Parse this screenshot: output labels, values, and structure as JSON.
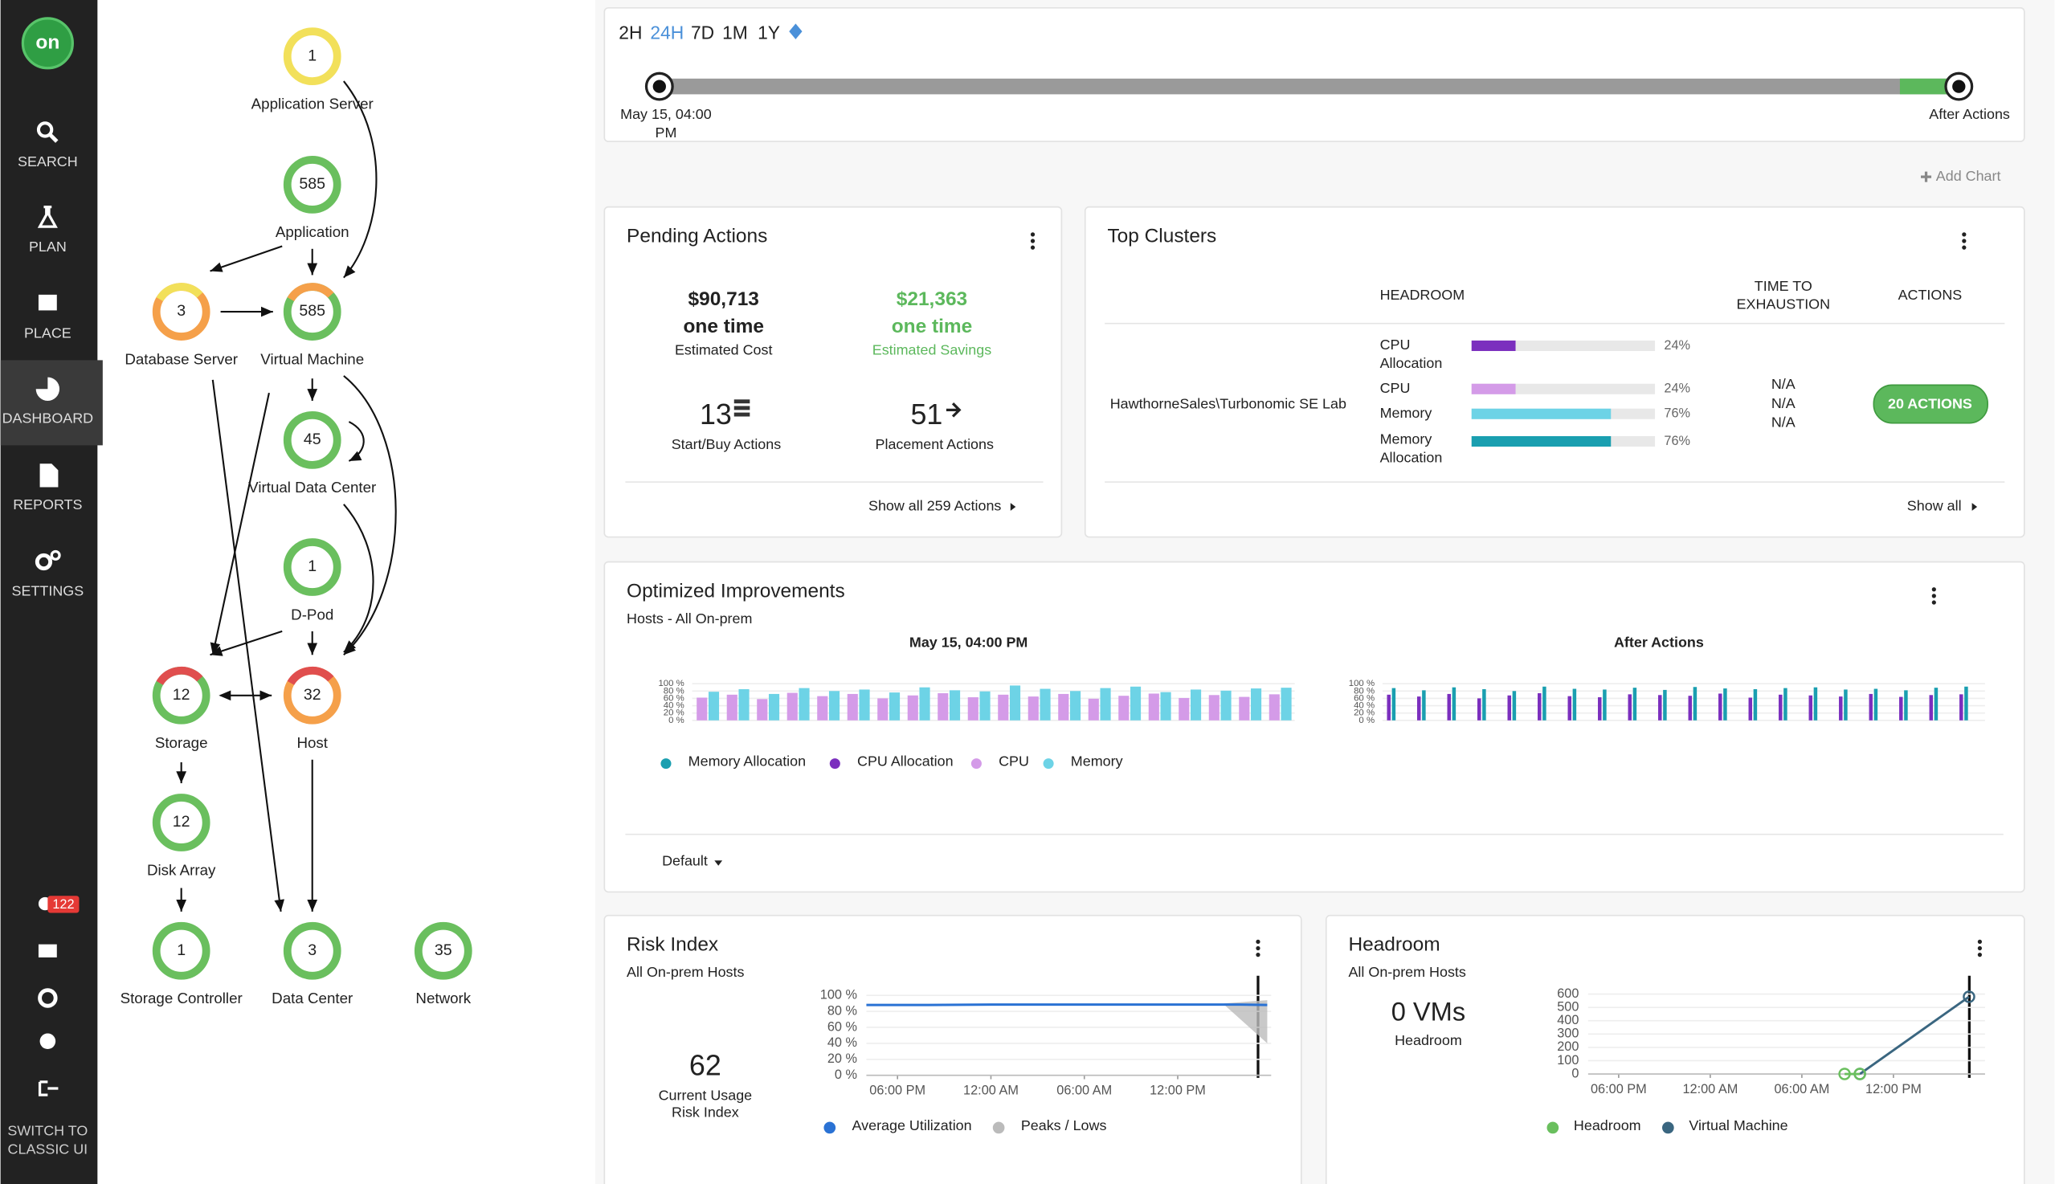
{
  "sidebar": {
    "logo": "on",
    "nav": [
      "SEARCH",
      "PLAN",
      "PLACE",
      "DASHBOARD",
      "REPORTS",
      "SETTINGS"
    ],
    "notifications": "122",
    "switch": [
      "SWITCH TO",
      "CLASSIC UI"
    ]
  },
  "supply_chain": {
    "nodes": [
      {
        "label": "Application Server",
        "count": 1,
        "color": "#f2e05a"
      },
      {
        "label": "Application",
        "count": 585,
        "color": "#6abf5e"
      },
      {
        "label": "Database Server",
        "count": 3,
        "color": "#f5a04a",
        "accent": "#f2e05a"
      },
      {
        "label": "Virtual Machine",
        "count": 585,
        "color": "#6abf5e",
        "accent": "#f5a04a"
      },
      {
        "label": "Virtual Data Center",
        "count": 45,
        "color": "#6abf5e"
      },
      {
        "label": "D-Pod",
        "count": 1,
        "color": "#6abf5e"
      },
      {
        "label": "Storage",
        "count": 12,
        "color": "#6abf5e",
        "accent": "#e04e4e"
      },
      {
        "label": "Host",
        "count": 32,
        "color": "#f5a04a",
        "accent": "#e04e4e"
      },
      {
        "label": "Disk Array",
        "count": 12,
        "color": "#6abf5e"
      },
      {
        "label": "Storage Controller",
        "count": 1,
        "color": "#6abf5e"
      },
      {
        "label": "Data Center",
        "count": 3,
        "color": "#6abf5e"
      },
      {
        "label": "Network",
        "count": 35,
        "color": "#6abf5e"
      }
    ]
  },
  "timeline": {
    "ranges": [
      "2H",
      "24H",
      "7D",
      "1M",
      "1Y"
    ],
    "start_label": [
      "May 15, 04:00",
      "PM"
    ],
    "end_label": "After Actions"
  },
  "add_chart": "Add Chart",
  "pending_actions": {
    "title": "Pending Actions",
    "cost": {
      "amount": "$90,713",
      "period": "one time",
      "label": "Estimated Cost"
    },
    "savings": {
      "amount": "$21,363",
      "period": "one time",
      "label": "Estimated Savings"
    },
    "start_buy": {
      "count": 13,
      "label": "Start/Buy Actions"
    },
    "placement": {
      "count": 51,
      "label": "Placement Actions"
    },
    "show_all": "Show all 259 Actions"
  },
  "top_clusters": {
    "title": "Top Clusters",
    "headroom_header": "HEADROOM",
    "exhaustion_header": [
      "TIME TO",
      "EXHAUSTION"
    ],
    "actions_header": "ACTIONS",
    "cluster": "HawthorneSales\\Turbonomic SE Lab",
    "metrics": [
      {
        "name": [
          "CPU",
          "Allocation"
        ],
        "value": 24,
        "value_label": "24%",
        "color": "#7b2fbe"
      },
      {
        "name": [
          "CPU"
        ],
        "value": 24,
        "value_label": "24%",
        "color": "#d49be8"
      },
      {
        "name": [
          "Memory"
        ],
        "value": 76,
        "value_label": "76%",
        "color": "#6dd3e6"
      },
      {
        "name": [
          "Memory",
          "Allocation"
        ],
        "value": 76,
        "value_label": "76%",
        "color": "#1a9fb0"
      }
    ],
    "exhaustion": [
      "N/A",
      "N/A",
      "N/A"
    ],
    "action_button": "20 ACTIONS",
    "show_all": "Show all"
  },
  "optimized": {
    "title": "Optimized Improvements",
    "subtitle": "Hosts - All On-prem",
    "before_title": "May 15, 04:00 PM",
    "after_title": "After Actions",
    "ylim": [
      0,
      100
    ],
    "yticks": [
      {
        "value": 100,
        "label": "100 %"
      },
      {
        "value": 80,
        "label": "80 %"
      },
      {
        "value": 60,
        "label": "60 %"
      },
      {
        "value": 40,
        "label": "40 %"
      },
      {
        "value": 20,
        "label": "20 %"
      },
      {
        "value": 0,
        "label": "0 %"
      }
    ],
    "series": [
      {
        "name": "Memory Allocation",
        "color": "#1a9fb0",
        "after": [
          88,
          82,
          90,
          85,
          80,
          92,
          86,
          84,
          89,
          83,
          91,
          87,
          85,
          88,
          90,
          84,
          86,
          82,
          89,
          92
        ]
      },
      {
        "name": "CPU Allocation",
        "color": "#7b2fbe",
        "after": [
          70,
          65,
          72,
          60,
          68,
          74,
          66,
          63,
          71,
          69,
          67,
          73,
          62,
          70,
          68,
          65,
          72,
          64,
          69,
          71
        ]
      },
      {
        "name": "CPU",
        "color": "#d49be8",
        "before": [
          62,
          70,
          58,
          75,
          66,
          72,
          60,
          68,
          74,
          63,
          70,
          65,
          72,
          59,
          67,
          73,
          61,
          69,
          64,
          71
        ]
      },
      {
        "name": "Memory",
        "color": "#6dd3e6",
        "before": [
          78,
          85,
          72,
          88,
          80,
          84,
          76,
          90,
          82,
          79,
          95,
          86,
          80,
          88,
          92,
          77,
          84,
          81,
          87,
          89
        ]
      }
    ],
    "dropdown": "Default"
  },
  "risk_index": {
    "title": "Risk Index",
    "subtitle": "All On-prem Hosts",
    "value": 62,
    "value_caption": [
      "Current Usage",
      "Risk Index"
    ],
    "xlim": [
      0,
      26
    ],
    "xticks": [
      {
        "value": 2,
        "label": "06:00 PM"
      },
      {
        "value": 8,
        "label": "12:00 AM"
      },
      {
        "value": 14,
        "label": "06:00 AM"
      },
      {
        "value": 20,
        "label": "12:00 PM"
      }
    ],
    "ylim": [
      0,
      100
    ],
    "yticks": [
      {
        "value": 100,
        "label": "100 %"
      },
      {
        "value": 80,
        "label": "80 %"
      },
      {
        "value": 60,
        "label": "60 %"
      },
      {
        "value": 40,
        "label": "40 %"
      },
      {
        "value": 20,
        "label": "20 %"
      },
      {
        "value": 0,
        "label": "0 %"
      }
    ],
    "series": [
      {
        "name": "Average Utilization",
        "color": "#2a72d4",
        "x": [
          0,
          4,
          8,
          12,
          16,
          20,
          24,
          25.75
        ],
        "values": [
          88,
          88,
          88.5,
          88.5,
          88.5,
          88.5,
          88.5,
          88
        ]
      },
      {
        "name": "Peaks / Lows",
        "color": "#bbbbbb",
        "x": [
          23,
          25.75
        ],
        "high": [
          90,
          94
        ],
        "low": [
          88,
          40
        ]
      }
    ]
  },
  "headroom": {
    "title": "Headroom",
    "subtitle": "All On-prem Hosts",
    "value": "0 VMs",
    "value_caption": "Headroom",
    "xlim": [
      0,
      26
    ],
    "xticks": [
      {
        "value": 2,
        "label": "06:00 PM"
      },
      {
        "value": 8,
        "label": "12:00 AM"
      },
      {
        "value": 14,
        "label": "06:00 AM"
      },
      {
        "value": 20,
        "label": "12:00 PM"
      }
    ],
    "ylim": [
      0,
      600
    ],
    "yticks": [
      0,
      100,
      200,
      300,
      400,
      500,
      600
    ],
    "series": [
      {
        "name": "Headroom",
        "color": "#6abf5e",
        "x": [
          16.8,
          17.8
        ],
        "values": [
          0,
          0
        ]
      },
      {
        "name": "Virtual Machine",
        "color": "#3a6680",
        "x": [
          17.8,
          24.95
        ],
        "values": [
          0,
          580
        ]
      }
    ]
  }
}
